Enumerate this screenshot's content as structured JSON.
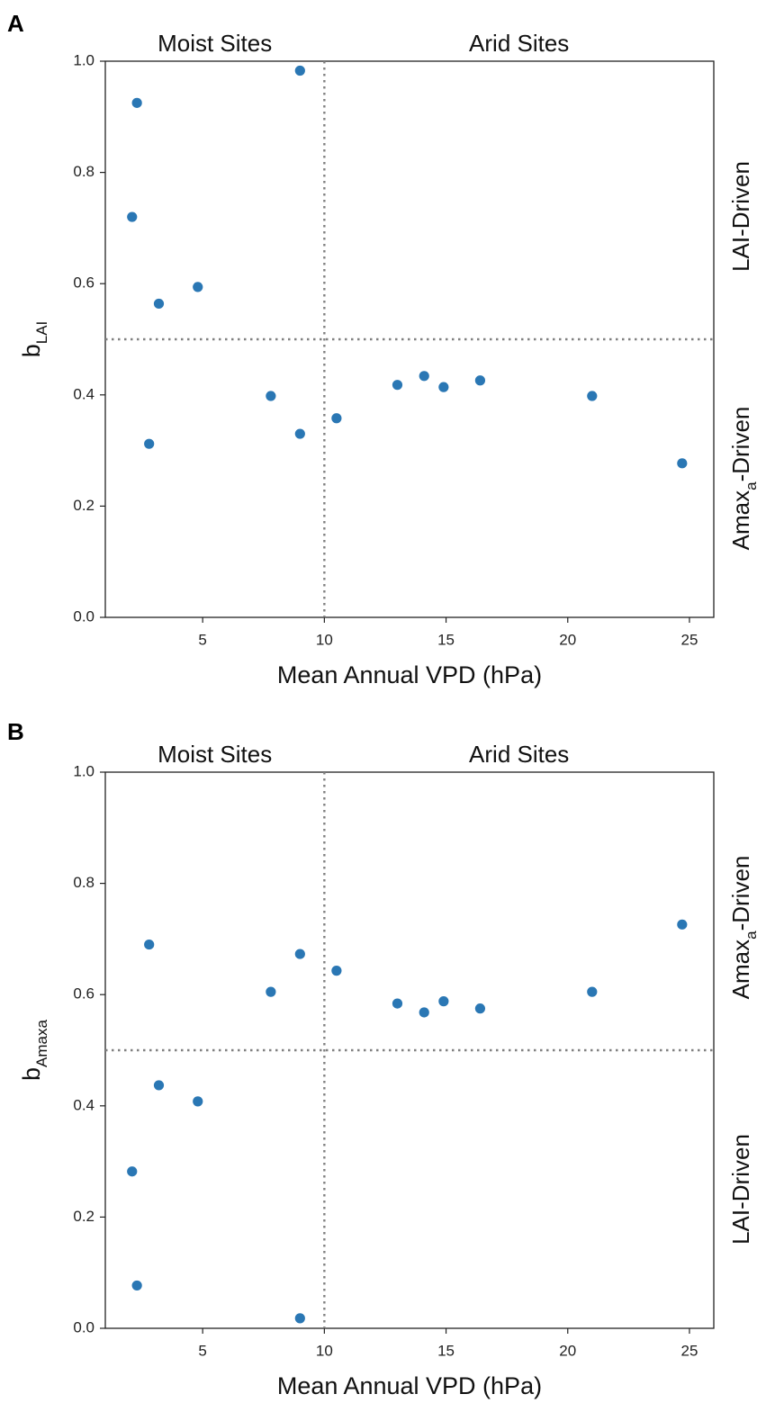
{
  "chart_data": [
    {
      "type": "scatter",
      "panel_label": "A",
      "region_labels": {
        "left": "Moist Sites",
        "right": "Arid Sites"
      },
      "xlabel": "Mean Annual VPD (hPa)",
      "ylabel": {
        "base": "b",
        "sub": "LAI"
      },
      "side_labels": {
        "upper": {
          "text": "LAI-Driven",
          "sub": "",
          "suffix": ""
        },
        "lower": {
          "text": "Amax",
          "sub": "a",
          "suffix": "-Driven"
        }
      },
      "xlim": [
        1,
        26
      ],
      "ylim": [
        0.0,
        1.0
      ],
      "xticks": [
        5,
        10,
        15,
        20,
        25
      ],
      "xtick_labels": [
        "5",
        "10",
        "15",
        "20",
        "25"
      ],
      "yticks": [
        0.0,
        0.2,
        0.4,
        0.6,
        0.8,
        1.0
      ],
      "ytick_labels": [
        "0.0",
        "0.2",
        "0.4",
        "0.6",
        "0.8",
        "1.0"
      ],
      "vline_x": 10,
      "hline_y": 0.5,
      "marker_color": "#2a77b4",
      "x": [
        2.1,
        2.3,
        2.8,
        3.2,
        4.8,
        7.8,
        9.0,
        9.0,
        10.5,
        13.0,
        14.1,
        14.9,
        16.4,
        21.0,
        24.7
      ],
      "y": [
        0.72,
        0.925,
        0.312,
        0.564,
        0.594,
        0.398,
        0.33,
        0.983,
        0.358,
        0.418,
        0.434,
        0.414,
        0.426,
        0.398,
        0.277
      ]
    },
    {
      "type": "scatter",
      "panel_label": "B",
      "region_labels": {
        "left": "Moist Sites",
        "right": "Arid Sites"
      },
      "xlabel": "Mean Annual VPD (hPa)",
      "ylabel": {
        "base": "b",
        "sub": "Amaxa"
      },
      "side_labels": {
        "upper": {
          "text": "Amax",
          "sub": "a",
          "suffix": "-Driven"
        },
        "lower": {
          "text": "LAI-Driven",
          "sub": "",
          "suffix": ""
        }
      },
      "xlim": [
        1,
        26
      ],
      "ylim": [
        0.0,
        1.0
      ],
      "xticks": [
        5,
        10,
        15,
        20,
        25
      ],
      "xtick_labels": [
        "5",
        "10",
        "15",
        "20",
        "25"
      ],
      "yticks": [
        0.0,
        0.2,
        0.4,
        0.6,
        0.8,
        1.0
      ],
      "ytick_labels": [
        "0.0",
        "0.2",
        "0.4",
        "0.6",
        "0.8",
        "1.0"
      ],
      "vline_x": 10,
      "hline_y": 0.5,
      "marker_color": "#2a77b4",
      "x": [
        2.1,
        2.3,
        2.8,
        3.2,
        4.8,
        7.8,
        9.0,
        9.0,
        10.5,
        13.0,
        14.1,
        14.9,
        16.4,
        21.0,
        24.7
      ],
      "y": [
        0.282,
        0.077,
        0.69,
        0.437,
        0.408,
        0.605,
        0.673,
        0.018,
        0.643,
        0.584,
        0.568,
        0.588,
        0.575,
        0.605,
        0.726
      ]
    }
  ]
}
